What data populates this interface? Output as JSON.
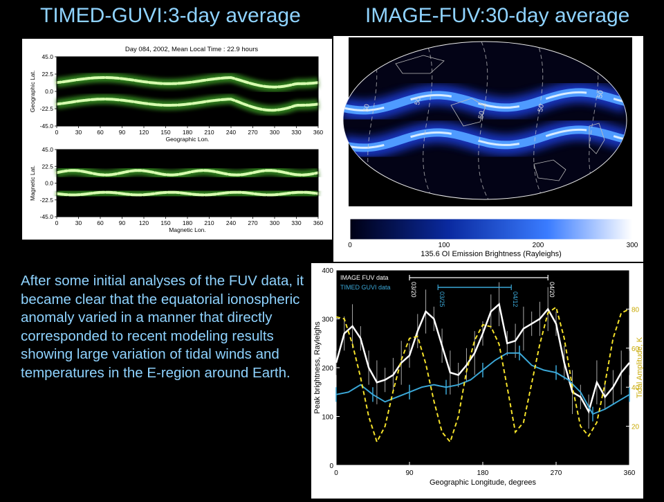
{
  "titles": {
    "left": "TIMED-GUVI:3-day average",
    "right": "IMAGE-FUV:30-day average"
  },
  "body_text": "After some initial analyses of the FUV data, it became clear that the equatorial ionospheric anomaly varied in a manner that directly corresponded to recent  modeling results showing large variation of tidal winds and temperatures in the E-region around Earth.",
  "colors": {
    "title": "#8fd3ff",
    "guvi_green": "#d8ffb0",
    "fuv_blue": "#2060ff",
    "image_fuv_line": "#ffffff",
    "timed_guvi_line": "#3ba8d8",
    "tidal_line": "#f5e22a"
  },
  "chart_data": [
    {
      "type": "heatmap",
      "title": "Day 084, 2002, Mean Local Time : 22.9 hours",
      "xlabel": "Geographic Lon.",
      "ylabel": "Geographic Lat.",
      "x_ticks": [
        "0",
        "30",
        "60",
        "90",
        "120",
        "150",
        "180",
        "210",
        "240",
        "270",
        "300",
        "330",
        "360"
      ],
      "y_ticks": [
        "45.0",
        "22.5",
        "0.0",
        "-22.5",
        "-45.0"
      ],
      "xlim": [
        0,
        360
      ],
      "ylim": [
        -45,
        45
      ]
    },
    {
      "type": "heatmap",
      "title": "",
      "xlabel": "Magnetic Lon.",
      "ylabel": "Magnetic Lat.",
      "x_ticks": [
        "0",
        "30",
        "60",
        "90",
        "120",
        "150",
        "180",
        "210",
        "240",
        "270",
        "300",
        "330",
        "360"
      ],
      "y_ticks": [
        "45.0",
        "22.5",
        "0.0",
        "-22.5",
        "-45.0"
      ],
      "xlim": [
        0,
        360
      ],
      "ylim": [
        -45,
        45
      ]
    },
    {
      "type": "heatmap",
      "title": "",
      "colorbar_label": "135.6 OI Emission Brightness (Rayleighs)",
      "colorbar_ticks": [
        "0",
        "100",
        "200",
        "300"
      ],
      "contour_labels": [
        "50",
        "50",
        "50",
        "50",
        "50"
      ],
      "colorbar_range": [
        0,
        300
      ]
    },
    {
      "type": "line",
      "xlabel": "Geographic Longitude, degrees",
      "ylabel": "Peak brightness, Rayleighs",
      "y2label": "Tidal Amplitude, K",
      "xlim": [
        0,
        360
      ],
      "ylim": [
        0,
        400
      ],
      "y2lim": [
        0,
        100
      ],
      "x_ticks": [
        0,
        90,
        180,
        270,
        360
      ],
      "y_ticks": [
        0,
        100,
        200,
        300,
        400
      ],
      "y2_ticks": [
        20,
        40,
        60,
        80
      ],
      "legend": [
        "IMAGE FUV data",
        "TIMED GUVI data"
      ],
      "date_markers": [
        {
          "label": "03/20",
          "series": "IMAGE FUV data",
          "x": 90
        },
        {
          "label": "04/20",
          "series": "IMAGE FUV data",
          "x": 260
        },
        {
          "label": "03/25",
          "series": "TIMED GUVI data",
          "x": 125
        },
        {
          "label": "04/12",
          "series": "TIMED GUVI data",
          "x": 215
        }
      ],
      "series": [
        {
          "name": "IMAGE FUV data",
          "axis": "left",
          "style": "solid",
          "x": [
            0,
            10,
            20,
            30,
            40,
            50,
            60,
            70,
            80,
            90,
            100,
            110,
            120,
            130,
            140,
            150,
            160,
            170,
            180,
            190,
            200,
            210,
            220,
            230,
            240,
            250,
            260,
            270,
            280,
            290,
            300,
            310,
            320,
            330,
            340,
            350,
            360
          ],
          "y": [
            210,
            270,
            285,
            260,
            200,
            170,
            175,
            185,
            210,
            225,
            275,
            315,
            300,
            245,
            190,
            185,
            205,
            230,
            270,
            315,
            330,
            250,
            255,
            280,
            290,
            300,
            320,
            290,
            210,
            150,
            140,
            110,
            170,
            140,
            160,
            190,
            210
          ]
        },
        {
          "name": "TIMED GUVI data",
          "axis": "left",
          "style": "solid",
          "x": [
            0,
            15,
            30,
            45,
            60,
            75,
            90,
            105,
            120,
            135,
            150,
            165,
            180,
            195,
            210,
            225,
            240,
            255,
            270,
            285,
            300,
            315,
            330,
            345,
            360
          ],
          "y": [
            145,
            150,
            165,
            145,
            130,
            140,
            150,
            160,
            165,
            160,
            165,
            175,
            195,
            215,
            230,
            230,
            205,
            195,
            190,
            175,
            150,
            105,
            115,
            130,
            145
          ]
        },
        {
          "name": "",
          "axis": "right",
          "style": "dashed",
          "x": [
            0,
            10,
            20,
            30,
            40,
            50,
            60,
            70,
            80,
            90,
            100,
            110,
            120,
            130,
            140,
            150,
            160,
            170,
            180,
            190,
            200,
            210,
            220,
            230,
            240,
            250,
            260,
            270,
            280,
            290,
            300,
            310,
            320,
            330,
            340,
            350,
            360
          ],
          "y": [
            76,
            75,
            62,
            45,
            25,
            12,
            20,
            38,
            54,
            65,
            66,
            52,
            33,
            17,
            12,
            25,
            48,
            64,
            72,
            71,
            62,
            40,
            17,
            22,
            42,
            62,
            78,
            81,
            65,
            40,
            20,
            15,
            22,
            42,
            65,
            78,
            80
          ]
        }
      ]
    }
  ]
}
